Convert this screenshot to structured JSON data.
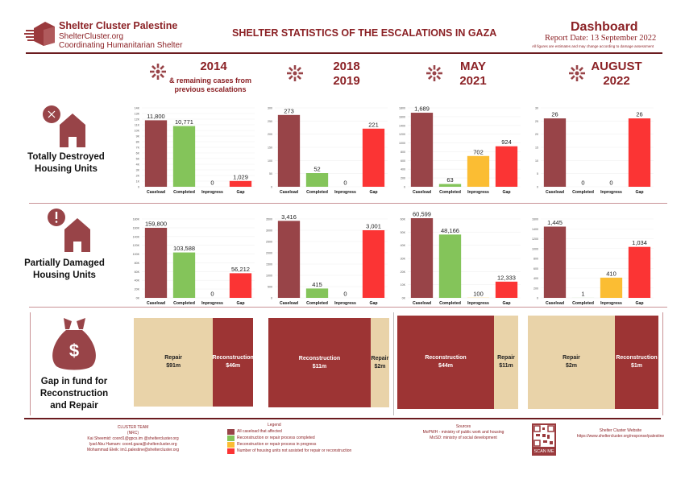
{
  "header": {
    "org_name": "Shelter Cluster Palestine",
    "org_site": "ShelterCluster.org",
    "org_tagline": "Coordinating Humanitarian Shelter",
    "main_title": "SHELTER STATISTICS OF THE ESCALATIONS IN GAZA",
    "dashboard_title": "Dashboard",
    "report_date": "Report Date: 13 September 2022",
    "disclaimer": "All figures are estimates and may change according to damage assessment"
  },
  "periods": [
    {
      "line1": "2014",
      "line2": "",
      "sub1": "& remaining cases from",
      "sub2": "previous escalations"
    },
    {
      "line1": "2018",
      "line2": "2019",
      "sub1": "",
      "sub2": ""
    },
    {
      "line1": "MAY",
      "line2": "2021",
      "sub1": "",
      "sub2": ""
    },
    {
      "line1": "AUGUST",
      "line2": "2022",
      "sub1": "",
      "sub2": ""
    }
  ],
  "rows": {
    "destroyed": {
      "label1": "Totally Destroyed",
      "label2": "Housing Units",
      "icon": "house-x-icon"
    },
    "damaged": {
      "label1": "Partially Damaged",
      "label2": "Housing Units",
      "icon": "house-exclamation-icon"
    },
    "funds": {
      "label1": "Gap in fund for",
      "label2": "Reconstruction",
      "label3": "and Repair",
      "icon": "money-bag-icon"
    }
  },
  "colors": {
    "caseload": "#984448",
    "completed": "#84c45a",
    "inprogress": "#fbbd33",
    "gap": "#fb3434",
    "repair": "#e9d3a9",
    "reconstruction": "#9d3434",
    "brand": "#8b2125"
  },
  "chart_data": [
    {
      "type": "bar",
      "id": "destroyed-2014",
      "title": "Totally Destroyed Housing Units - 2014",
      "categories": [
        "Caseload",
        "Completed",
        "Inprogress",
        "Gap"
      ],
      "values": [
        11800,
        10771,
        0,
        1029
      ],
      "labels": [
        "11,800",
        "10,771",
        "0",
        "1,029"
      ],
      "ylim": [
        0,
        14000
      ],
      "ticks": [
        "0",
        "1K",
        "2K",
        "3K",
        "4K",
        "5K",
        "6K",
        "7K",
        "8K",
        "9K",
        "10K",
        "11K",
        "12K",
        "13K",
        "14K"
      ]
    },
    {
      "type": "bar",
      "id": "destroyed-2018",
      "title": "Totally Destroyed Housing Units - 2018/2019",
      "categories": [
        "Caseload",
        "Completed",
        "Inprogress",
        "Gap"
      ],
      "values": [
        273,
        52,
        0,
        221
      ],
      "labels": [
        "273",
        "52",
        "0",
        "221"
      ],
      "ylim": [
        0,
        300
      ],
      "ticks": [
        "0",
        "50",
        "100",
        "150",
        "200",
        "250",
        "300"
      ]
    },
    {
      "type": "bar",
      "id": "destroyed-2021",
      "title": "Totally Destroyed Housing Units - May 2021",
      "categories": [
        "Caseload",
        "Completed",
        "Inprogress",
        "Gap"
      ],
      "values": [
        1689,
        63,
        702,
        924
      ],
      "labels": [
        "1,689",
        "63",
        "702",
        "924"
      ],
      "ylim": [
        0,
        1800
      ],
      "ticks": [
        "0",
        "200",
        "400",
        "600",
        "800",
        "1000",
        "1200",
        "1400",
        "1600",
        "1800"
      ]
    },
    {
      "type": "bar",
      "id": "destroyed-2022",
      "title": "Totally Destroyed Housing Units - August 2022",
      "categories": [
        "Caseload",
        "Completed",
        "Inprogress",
        "Gap"
      ],
      "values": [
        26,
        0,
        0,
        26
      ],
      "labels": [
        "26",
        "0",
        "0",
        "26"
      ],
      "ylim": [
        0,
        30
      ],
      "ticks": [
        "0",
        "5",
        "10",
        "15",
        "20",
        "25",
        "30"
      ]
    },
    {
      "type": "bar",
      "id": "damaged-2014",
      "title": "Partially Damaged Housing Units - 2014",
      "categories": [
        "Caseload",
        "Completed",
        "Inprogress",
        "Gap"
      ],
      "values": [
        159800,
        103588,
        0,
        56212
      ],
      "labels": [
        "159,800",
        "103,588",
        "0",
        "56,212"
      ],
      "ylim": [
        0,
        180000
      ],
      "ticks": [
        "0K",
        "20K",
        "40K",
        "60K",
        "80K",
        "100K",
        "120K",
        "140K",
        "160K",
        "180K"
      ]
    },
    {
      "type": "bar",
      "id": "damaged-2018",
      "title": "Partially Damaged Housing Units - 2018/2019",
      "categories": [
        "Caseload",
        "Completed",
        "Inprogress",
        "Gap"
      ],
      "values": [
        3416,
        415,
        0,
        3001
      ],
      "labels": [
        "3,416",
        "415",
        "0",
        "3,001"
      ],
      "ylim": [
        0,
        3500
      ],
      "ticks": [
        "0",
        "500",
        "1000",
        "1500",
        "2000",
        "2500",
        "3000",
        "3500"
      ]
    },
    {
      "type": "bar",
      "id": "damaged-2021",
      "title": "Partially Damaged Housing Units - May 2021",
      "categories": [
        "Caseload",
        "Completed",
        "Inprogress",
        "Gap"
      ],
      "values": [
        60599,
        48166,
        100,
        12333
      ],
      "labels": [
        "60,599",
        "48,166",
        "100",
        "12,333"
      ],
      "ylim": [
        0,
        60000
      ],
      "ticks": [
        "0K",
        "10K",
        "20K",
        "30K",
        "40K",
        "50K",
        "60K"
      ]
    },
    {
      "type": "bar",
      "id": "damaged-2022",
      "title": "Partially Damaged Housing Units - August 2022",
      "categories": [
        "Caseload",
        "Completed",
        "Inprogress",
        "Gap"
      ],
      "values": [
        1445,
        1,
        410,
        1034
      ],
      "labels": [
        "1,445",
        "1",
        "410",
        "1,034"
      ],
      "ylim": [
        0,
        1600
      ],
      "ticks": [
        "0",
        "200",
        "400",
        "600",
        "800",
        "1000",
        "1200",
        "1400",
        "1600"
      ]
    },
    {
      "type": "bar",
      "id": "funds-2014",
      "title": "Gap in fund - 2014",
      "categories": [
        "Repair",
        "Reconstruction"
      ],
      "values": [
        91,
        46
      ],
      "labels": [
        "$91m",
        "$46m"
      ],
      "unit": "USD millions"
    },
    {
      "type": "bar",
      "id": "funds-2018",
      "title": "Gap in fund - 2018/2019",
      "categories": [
        "Reconstruction",
        "Repair"
      ],
      "values": [
        11,
        2
      ],
      "labels": [
        "$11m",
        "$2m"
      ],
      "unit": "USD millions"
    },
    {
      "type": "bar",
      "id": "funds-2021",
      "title": "Gap in fund - May 2021",
      "categories": [
        "Reconstruction",
        "Repair"
      ],
      "values": [
        44,
        11
      ],
      "labels": [
        "$44m",
        "$11m"
      ],
      "unit": "USD millions"
    },
    {
      "type": "bar",
      "id": "funds-2022",
      "title": "Gap in fund - August 2022",
      "categories": [
        "Repair",
        "Reconstruction"
      ],
      "values": [
        2,
        1
      ],
      "labels": [
        "$2m",
        "$1m"
      ],
      "unit": "USD millions"
    }
  ],
  "footer": {
    "team_title": "CLUSTER TEAM",
    "team_sub": "(NRC)",
    "team_lines": [
      "Kai Sheemid: coord1@gpcs.im @sheltercluster.org",
      "Iyad Abu Hamam: coord.gaza@sheltercluster.org",
      "Mohammad Eleik: im1.palestine@sheltercluster.org"
    ],
    "legend_title": "Legend",
    "legend": [
      {
        "label": "All caseload that affected",
        "color": "#984448"
      },
      {
        "label": "Reconstruction or repair process completed",
        "color": "#84c45a"
      },
      {
        "label": "Reconstruction or repair process in progress",
        "color": "#fbbd33"
      },
      {
        "label": "Number of housing units not assisted for repair or reconstruction",
        "color": "#fb3434"
      }
    ],
    "sources_title": "Sources",
    "sources": [
      "MoPWH - ministry of public work and housing",
      "MoSD: ministry of social development"
    ],
    "qr_label": "SCAN ME",
    "website_title": "Shelter Cluster Website",
    "website_url": "https://www.sheltercluster.org/response/palestine"
  }
}
